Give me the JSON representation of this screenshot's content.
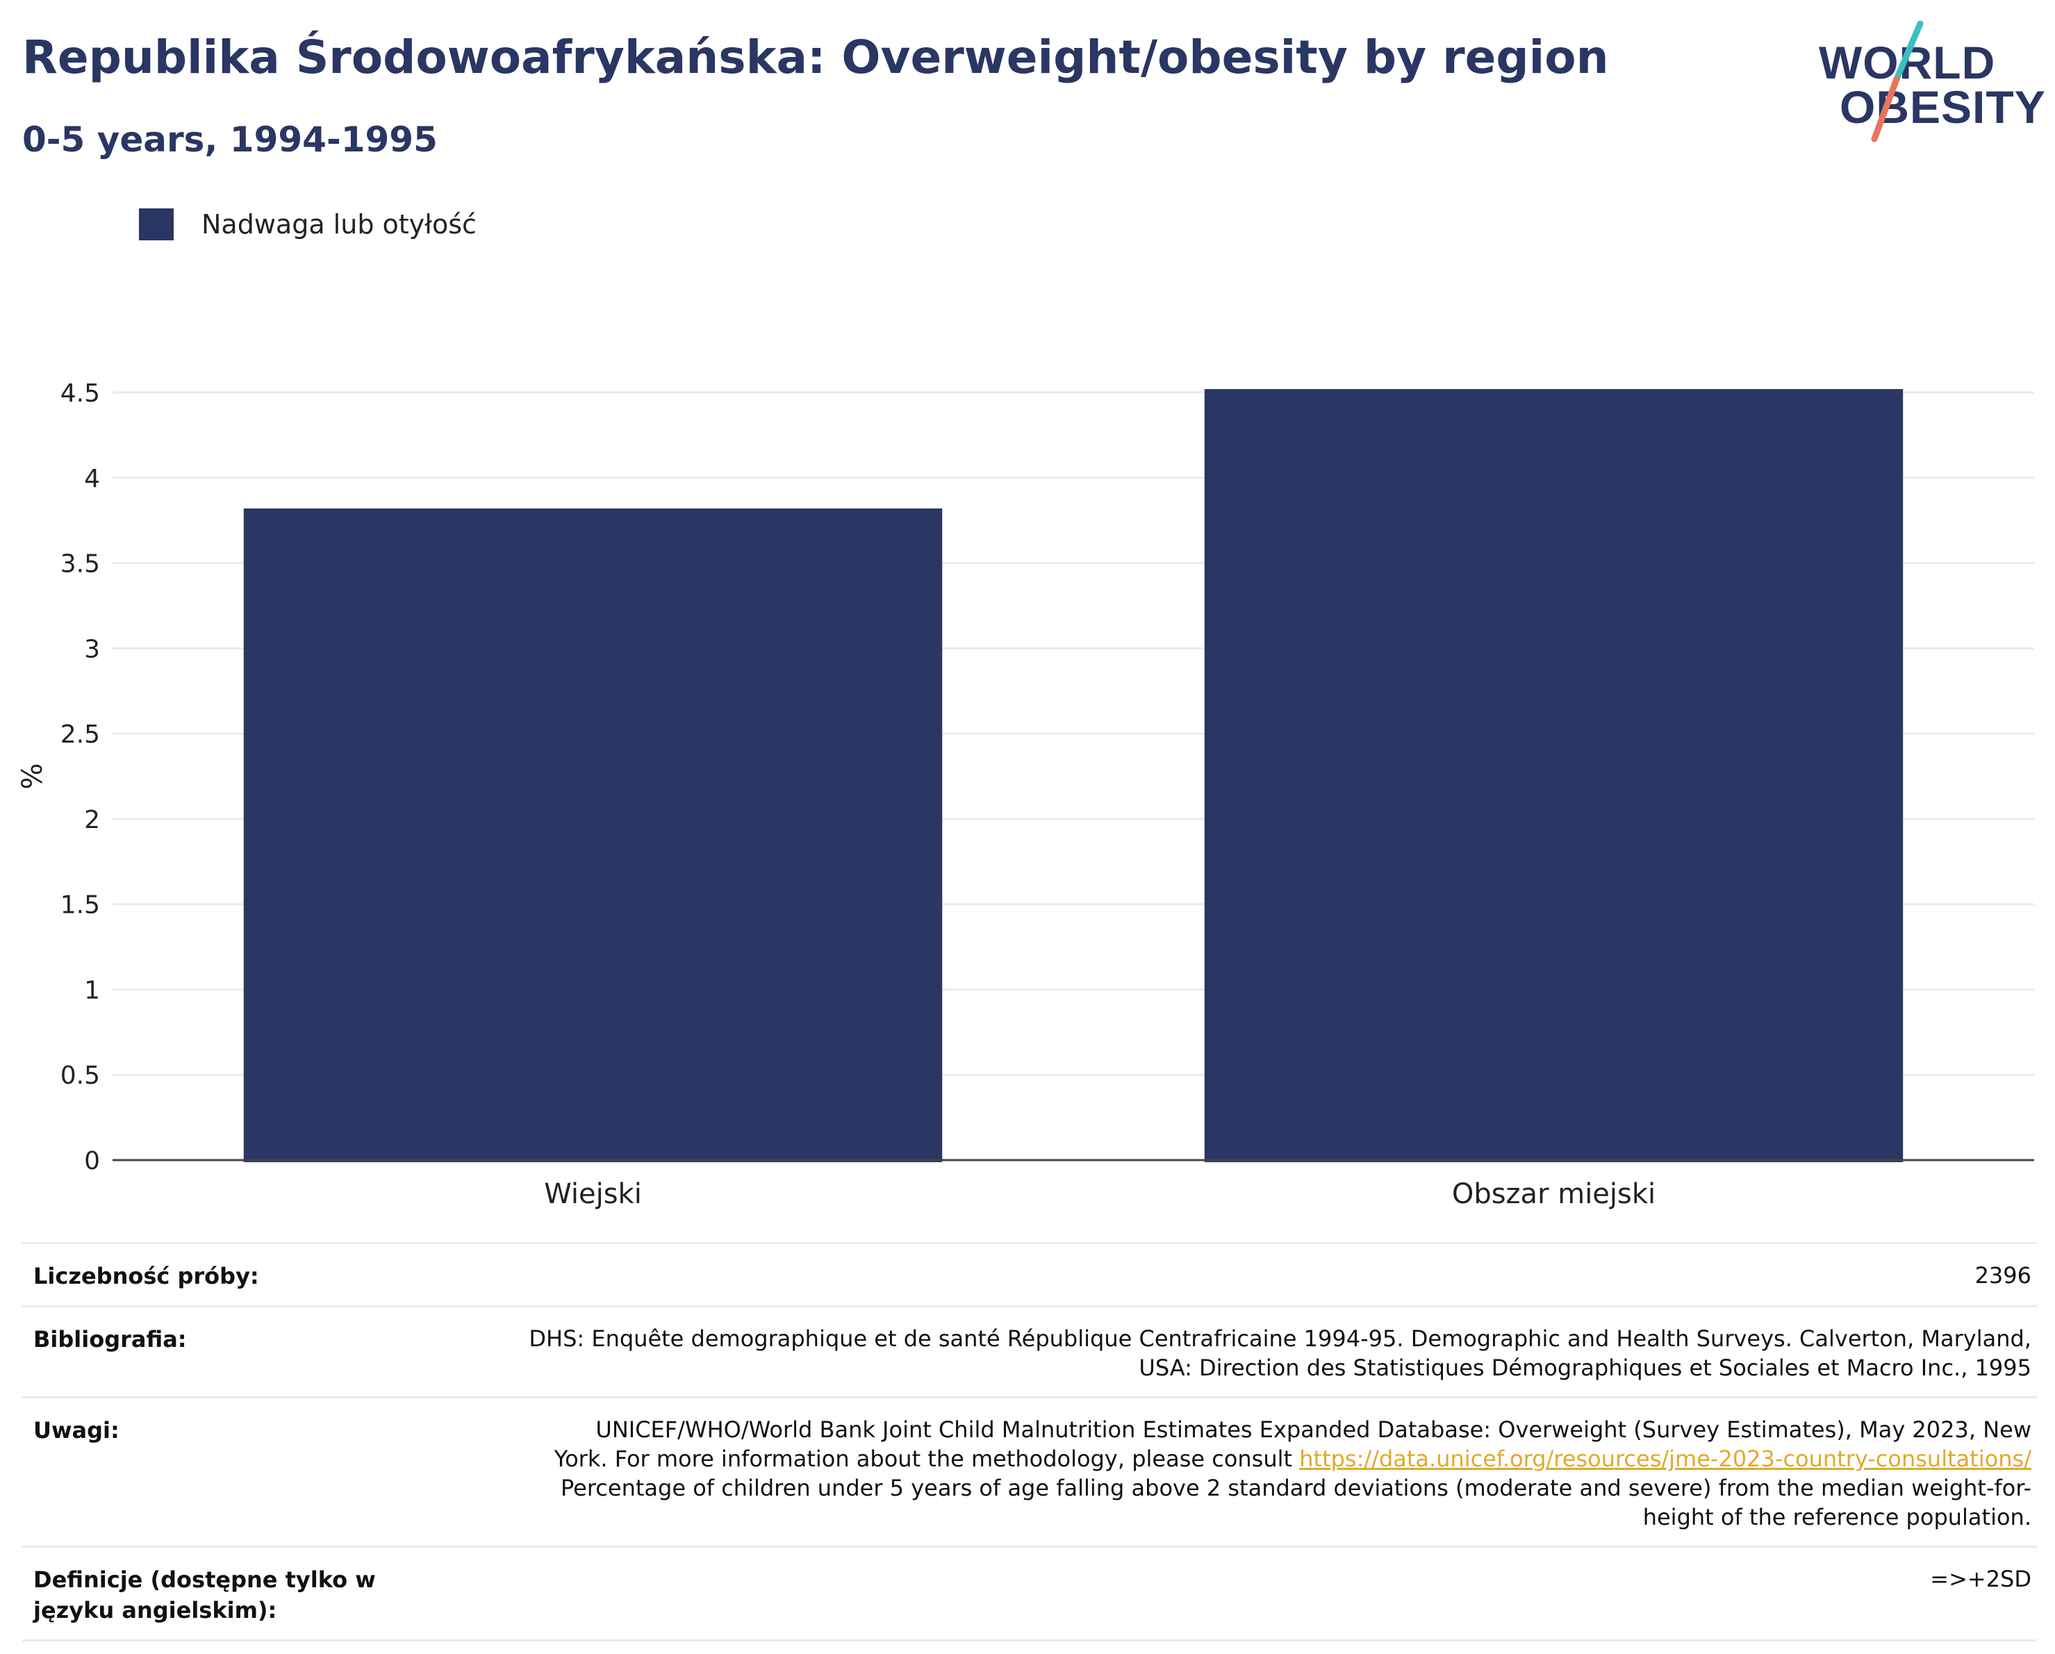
{
  "header": {
    "title": "Republika Środowoafrykańska: Overweight/obesity by region",
    "subtitle": "0-5 years, 1994-1995"
  },
  "logo": {
    "line1": "WORLD",
    "line2": "OBESITY",
    "colors": {
      "text": "#2a3663",
      "slash_top": "#3bbfc1",
      "slash_bottom": "#e9735e"
    }
  },
  "legend": {
    "label": "Nadwaga lub otyłość",
    "color": "#2a3663"
  },
  "chart_data": {
    "type": "bar",
    "categories": [
      "Wiejski",
      "Obszar miejski"
    ],
    "series": [
      {
        "name": "Nadwaga lub otyłość",
        "values": [
          3.82,
          4.52
        ],
        "color": "#2a3663"
      }
    ],
    "ylabel": "%",
    "ylim": [
      0,
      4.5
    ],
    "yticks": [
      "0",
      "0.5",
      "1",
      "1.5",
      "2",
      "2.5",
      "3",
      "3.5",
      "4",
      "4.5"
    ],
    "grid": true,
    "legend_position": "top-left"
  },
  "table": {
    "sample_label": "Liczebność próby:",
    "sample_value": "2396",
    "bibliography_label": "Bibliografia:",
    "bibliography_line1": "DHS: Enquête demographique et de santé République Centrafricaine 1994-95. Demographic and Health Surveys. Calverton, Maryland,",
    "bibliography_line2": "USA: Direction des Statistiques Démographiques et Sociales et Macro Inc., 1995",
    "notes_label": "Uwagi:",
    "notes_line1": "UNICEF/WHO/World Bank Joint Child Malnutrition Estimates Expanded Database: Overweight (Survey Estimates), May 2023, New",
    "notes_line2_prefix": "York. For more information about the methodology, please consult ",
    "notes_link": "https://data.unicef.org/resources/jme-2023-country-consultations/",
    "notes_line3": "Percentage of children under 5 years of age falling above 2 standard deviations (moderate and severe) from the median weight-for-",
    "notes_line4": "height of the reference population.",
    "definitions_label": "Definicje (dostępne tylko w języku angielskim):",
    "definitions_value": "=>+2SD"
  }
}
